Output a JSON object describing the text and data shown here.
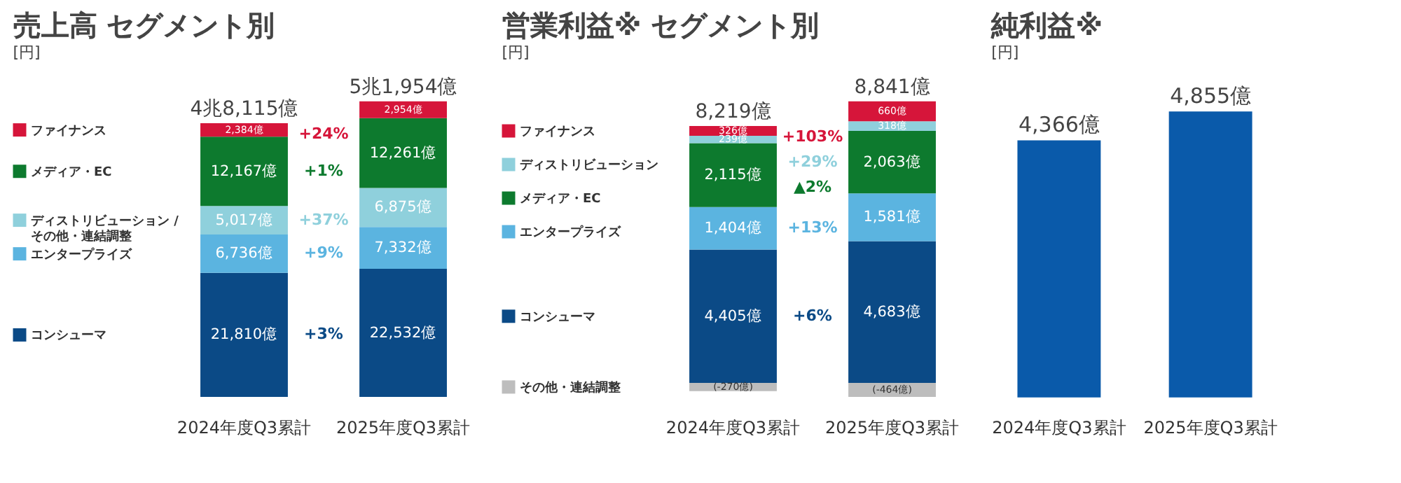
{
  "chart_data": [
    {
      "type": "bar",
      "title": "売上高 セグメント別",
      "ylabel": "[円]",
      "stacked": true,
      "legend": "left",
      "categories": [
        "2024年度Q3累計",
        "2025年度Q3累計"
      ],
      "series": [
        {
          "name": "コンシューマ",
          "color": "#0b4a86",
          "values": [
            21810,
            22532
          ],
          "value_labels": [
            "21,810億",
            "22,532億"
          ]
        },
        {
          "name": "エンタープライズ",
          "color": "#5bb4e0",
          "values": [
            6736,
            7332
          ],
          "value_labels": [
            "6,736億",
            "7,332億"
          ]
        },
        {
          "name": "ディストリビューション / その他・連結調整",
          "color": "#8fd0dc",
          "values": [
            5017,
            6875
          ],
          "value_labels": [
            "5,017億",
            "6,875億"
          ]
        },
        {
          "name": "メディア・EC",
          "color": "#0d7a2e",
          "values": [
            12167,
            12261
          ],
          "value_labels": [
            "12,167億",
            "12,261億"
          ]
        },
        {
          "name": "ファイナンス",
          "color": "#d6153a",
          "values": [
            2384,
            2954
          ],
          "value_labels": [
            "2,384億",
            "2,954億"
          ]
        }
      ],
      "totals": [
        "4兆8,115億",
        "5兆1,954億"
      ],
      "annotations": [
        "+3%",
        "+9%",
        "+37%",
        "+1%",
        "+24%"
      ]
    },
    {
      "type": "bar",
      "title": "営業利益※ セグメント別",
      "ylabel": "[円]",
      "stacked": true,
      "legend": "left",
      "categories": [
        "2024年度Q3累計",
        "2025年度Q3累計"
      ],
      "series": [
        {
          "name": "コンシューマ",
          "color": "#0b4a86",
          "values": [
            4405,
            4683
          ],
          "value_labels": [
            "4,405億",
            "4,683億"
          ]
        },
        {
          "name": "エンタープライズ",
          "color": "#5bb4e0",
          "values": [
            1404,
            1581
          ],
          "value_labels": [
            "1,404億",
            "1,581億"
          ]
        },
        {
          "name": "メディア・EC",
          "color": "#0d7a2e",
          "values": [
            2115,
            2063
          ],
          "value_labels": [
            "2,115億",
            "2,063億"
          ]
        },
        {
          "name": "ディストリビューション",
          "color": "#8fd0dc",
          "values": [
            239,
            318
          ],
          "value_labels": [
            "239億",
            "318億"
          ]
        },
        {
          "name": "ファイナンス",
          "color": "#d6153a",
          "values": [
            326,
            660
          ],
          "value_labels": [
            "326億",
            "660億"
          ]
        },
        {
          "name": "その他・連結調整",
          "color": "#bdbdbd",
          "values": [
            -270,
            -464
          ],
          "value_labels": [
            "(-270億)",
            "(-464億)"
          ]
        }
      ],
      "totals": [
        "8,219億",
        "8,841億"
      ],
      "annotations": [
        "+6%",
        "+13%",
        "▲2%",
        "+29%",
        "+103%"
      ]
    },
    {
      "type": "bar",
      "title": "純利益※",
      "ylabel": "[円]",
      "categories": [
        "2024年度Q3累計",
        "2025年度Q3累計"
      ],
      "series": [
        {
          "color": "#0a5aaa",
          "values": [
            4366,
            4855
          ],
          "value_labels": [
            "4,366億",
            "4,855億"
          ]
        }
      ]
    }
  ]
}
